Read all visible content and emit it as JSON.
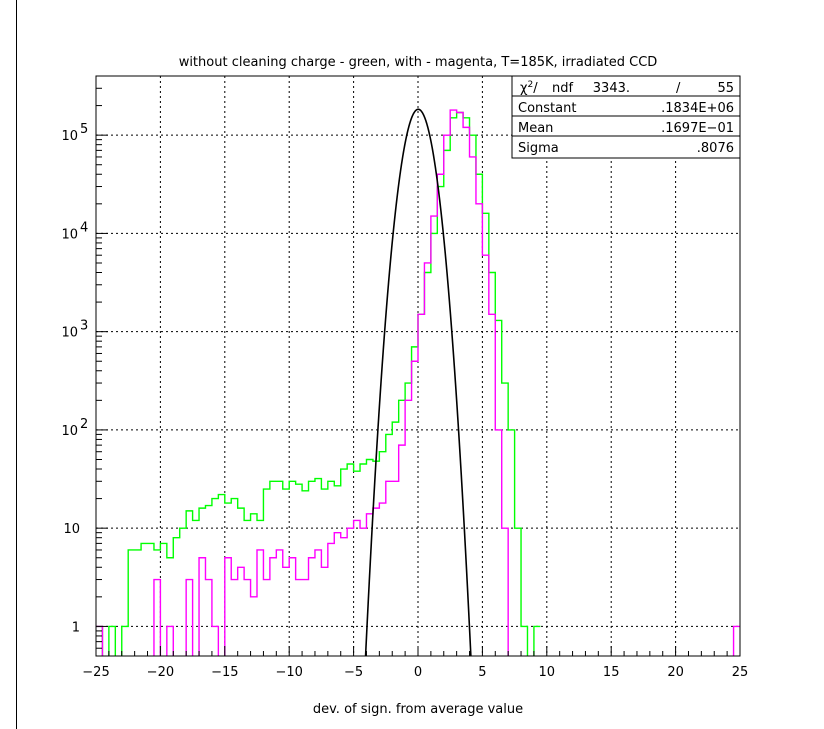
{
  "chart_data": {
    "type": "histogram",
    "title": "without cleaning charge - green, with - magenta, T=185K, irradiated CCD",
    "xlabel": "dev. of sign. from average value",
    "ylabel": "",
    "xlim": [
      -25,
      25
    ],
    "ylim": [
      0.5,
      400000
    ],
    "yscale": "log",
    "grid": true,
    "bin_width": 0.5,
    "x_ticks": [
      -25,
      -20,
      -15,
      -10,
      -5,
      0,
      5,
      10,
      15,
      20,
      25
    ],
    "x_tick_labels": [
      "−25",
      "−20",
      "−15",
      "−10",
      "−5",
      "0",
      "5",
      "10",
      "15",
      "20",
      "25"
    ],
    "y_tick_labels": [
      {
        "value": 1,
        "base": "1",
        "exp": ""
      },
      {
        "value": 10,
        "base": "10",
        "exp": ""
      },
      {
        "value": 100,
        "base": "10",
        "exp": "2"
      },
      {
        "value": 1000,
        "base": "10",
        "exp": "3"
      },
      {
        "value": 10000,
        "base": "10",
        "exp": "4"
      },
      {
        "value": 100000,
        "base": "10",
        "exp": "5"
      }
    ],
    "stats": {
      "chi2_label": "ndf",
      "chi2_value": "3343.",
      "chi2_sep": "/",
      "ndf_value": "55",
      "rows": [
        {
          "label": "Constant",
          "value": ".1834E+06"
        },
        {
          "label": "Mean",
          "value": ".1697E−01"
        },
        {
          "label": "Sigma",
          "value": ".8076"
        }
      ]
    },
    "colors": {
      "green": "#00ff00",
      "magenta": "#ff00ff",
      "fit": "#000000"
    },
    "fit": {
      "type": "gaussian",
      "constant": 183400,
      "mean": 0.01697,
      "sigma": 0.8076
    },
    "series": [
      {
        "color": "green",
        "x_start": -25,
        "values": [
          1,
          0.4,
          1,
          0.4,
          1,
          6,
          6,
          7,
          7,
          6,
          7,
          5,
          8,
          10,
          15,
          12,
          16,
          17,
          20,
          22,
          18,
          20,
          16,
          12,
          14,
          12,
          25,
          30,
          30,
          25,
          30,
          28,
          24,
          30,
          32,
          25,
          30,
          27,
          40,
          45,
          38,
          45,
          50,
          48,
          60,
          90,
          120,
          200,
          300,
          700,
          1500,
          4000,
          10000,
          30000,
          70000,
          150000,
          170000,
          150000,
          100000,
          40000,
          16000,
          4000,
          1300,
          300,
          100,
          10,
          1,
          0.4,
          1
        ]
      },
      {
        "color": "magenta",
        "x_start": -25,
        "values": [
          1,
          0.4,
          0.4,
          0.4,
          0.4,
          0.4,
          0.4,
          0.4,
          0.4,
          3,
          0.4,
          1,
          0.4,
          0.4,
          3,
          0.4,
          5,
          3,
          1,
          0.4,
          5,
          3,
          4,
          3,
          2,
          6,
          3,
          5,
          6,
          4,
          5,
          3,
          3,
          5,
          6,
          4,
          7,
          9,
          8,
          10,
          12,
          10,
          14,
          16,
          18,
          30,
          30,
          70,
          200,
          500,
          1500,
          5000,
          15000,
          40000,
          100000,
          180000,
          170000,
          120000,
          60000,
          20000,
          6000,
          1500,
          100,
          10,
          0.4,
          0.4,
          0.4,
          0.4,
          0.4,
          0.4,
          0.4,
          0.4,
          0.4,
          0.4,
          0.4,
          0.4,
          0.4,
          0.4,
          0.4,
          0.4,
          0.4,
          0.4,
          0.4,
          0.4,
          0.4,
          0.4,
          0.4,
          0.4,
          0.4,
          0.4,
          0.4,
          0.4,
          0.4,
          0.4,
          0.4,
          0.4,
          0.4,
          0.4,
          0.4,
          1
        ]
      }
    ]
  }
}
